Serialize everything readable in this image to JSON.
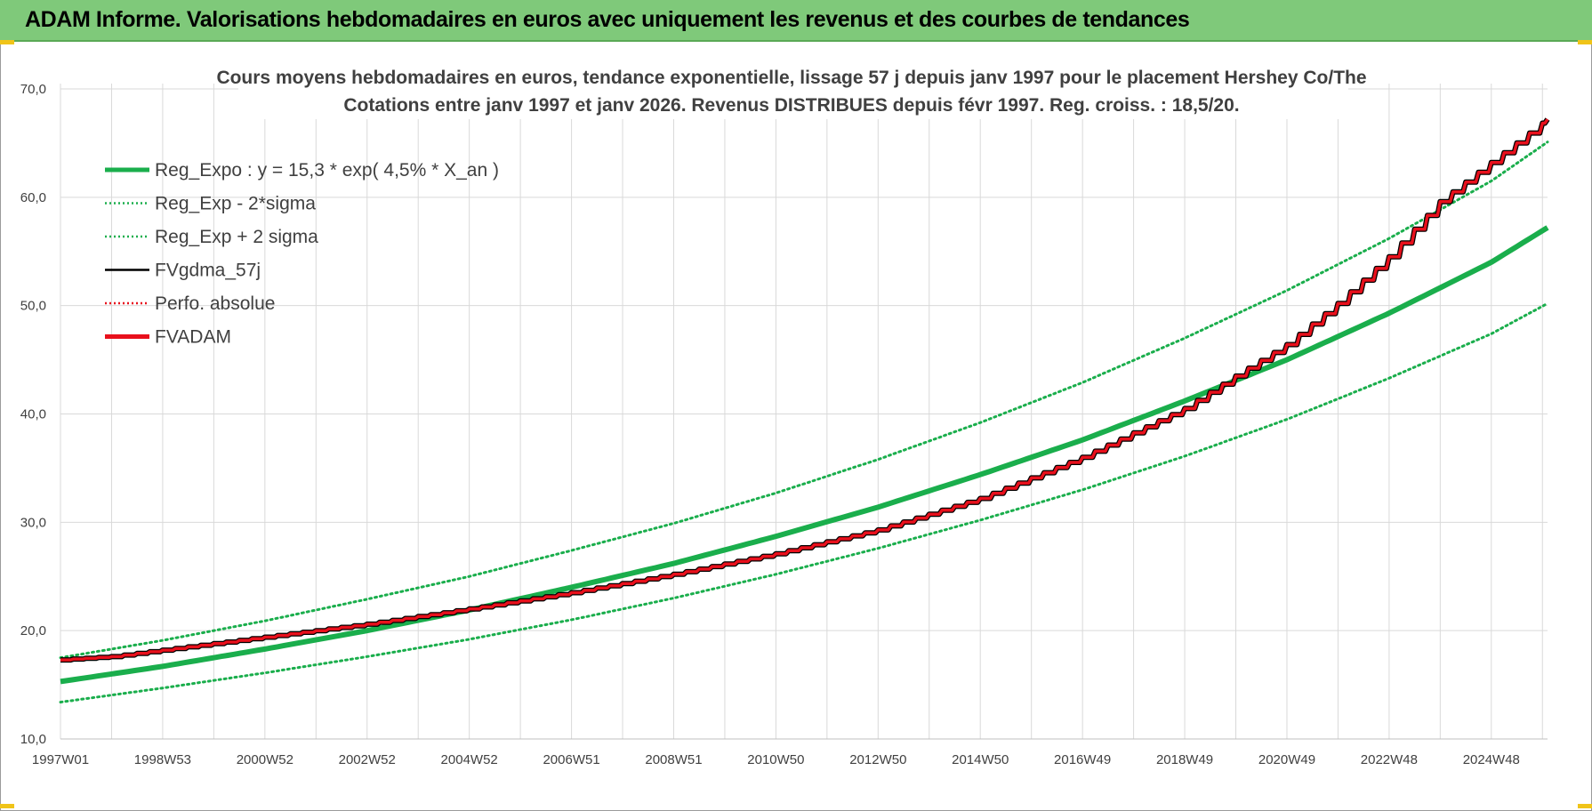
{
  "header": {
    "title": "ADAM Informe. Valorisations hebdomadaires en euros avec uniquement les revenus et des courbes de tendances"
  },
  "colors": {
    "header_bg": "#7fc97a",
    "green": "#1aae4c",
    "red": "#e8101c",
    "black": "#000000",
    "grid": "#d9d9d9"
  },
  "chart_data": {
    "type": "line",
    "title_line1": "Cours moyens hebdomadaires en euros, tendance exponentielle, lissage 57 j depuis janv 1997 pour le placement Hershey Co/The",
    "title_line2": "Cotations entre janv 1997 et janv 2026. Revenus DISTRIBUES depuis févr 1997. Reg. croiss. : 18,5/20.",
    "xlabel": "",
    "ylabel": "",
    "x_range": [
      1997.0,
      2026.1
    ],
    "ylim": [
      10,
      70
    ],
    "y_ticks": [
      "10,0",
      "20,0",
      "30,0",
      "40,0",
      "50,0",
      "60,0",
      "70,0"
    ],
    "x_ticks": [
      {
        "label": "1997W01",
        "x": 1997.0
      },
      {
        "label": "1998W53",
        "x": 1999.0
      },
      {
        "label": "2000W52",
        "x": 2001.0
      },
      {
        "label": "2002W52",
        "x": 2003.0
      },
      {
        "label": "2004W52",
        "x": 2005.0
      },
      {
        "label": "2006W51",
        "x": 2007.0
      },
      {
        "label": "2008W51",
        "x": 2009.0
      },
      {
        "label": "2010W50",
        "x": 2011.0
      },
      {
        "label": "2012W50",
        "x": 2013.0
      },
      {
        "label": "2014W50",
        "x": 2015.0
      },
      {
        "label": "2016W49",
        "x": 2017.0
      },
      {
        "label": "2018W49",
        "x": 2019.0
      },
      {
        "label": "2020W49",
        "x": 2021.0
      },
      {
        "label": "2022W48",
        "x": 2023.0
      },
      {
        "label": "2024W48",
        "x": 2025.0
      }
    ],
    "legend": [
      {
        "name": "Reg_Expo : y = 15,3 * exp( 4,5% *  X_an )",
        "style": "solid-thick",
        "color": "#1aae4c"
      },
      {
        "name": "Reg_Exp - 2*sigma",
        "style": "dotted",
        "color": "#1aae4c"
      },
      {
        "name": "Reg_Exp + 2 sigma",
        "style": "dotted",
        "color": "#1aae4c"
      },
      {
        "name": "FVgdma_57j",
        "style": "solid",
        "color": "#000000"
      },
      {
        "name": "Perfo. absolue",
        "style": "dotted",
        "color": "#e8101c"
      },
      {
        "name": "FVADAM",
        "style": "solid-thick",
        "color": "#e8101c"
      }
    ],
    "series": [
      {
        "name": "Reg_Expo",
        "x": [
          1997,
          1999,
          2001,
          2003,
          2005,
          2007,
          2009,
          2011,
          2013,
          2015,
          2017,
          2019,
          2021,
          2023,
          2025,
          2026.1
        ],
        "values": [
          15.3,
          16.7,
          18.3,
          20.0,
          21.9,
          24.0,
          26.2,
          28.7,
          31.4,
          34.4,
          37.6,
          41.2,
          45.0,
          49.3,
          54.0,
          57.2
        ]
      },
      {
        "name": "Reg_Exp - 2*sigma",
        "x": [
          1997,
          1999,
          2001,
          2003,
          2005,
          2007,
          2009,
          2011,
          2013,
          2015,
          2017,
          2019,
          2021,
          2023,
          2025,
          2026.1
        ],
        "values": [
          13.4,
          14.7,
          16.1,
          17.6,
          19.2,
          21.0,
          23.0,
          25.2,
          27.6,
          30.2,
          33.0,
          36.1,
          39.5,
          43.3,
          47.4,
          50.2
        ]
      },
      {
        "name": "Reg_Exp + 2 sigma",
        "x": [
          1997,
          1999,
          2001,
          2003,
          2005,
          2007,
          2009,
          2011,
          2013,
          2015,
          2017,
          2019,
          2021,
          2023,
          2025,
          2026.1
        ],
        "values": [
          17.5,
          19.1,
          20.9,
          22.9,
          25.0,
          27.4,
          29.9,
          32.7,
          35.8,
          39.2,
          42.9,
          47.0,
          51.4,
          56.2,
          61.5,
          65.1
        ]
      },
      {
        "name": "FVADAM",
        "x": [
          1997,
          1998,
          1999,
          2001,
          2003,
          2005,
          2007,
          2009,
          2011,
          2013,
          2015,
          2017,
          2019,
          2020,
          2021,
          2022,
          2023,
          2024,
          2025,
          2026.1
        ],
        "values": [
          17.3,
          17.6,
          18.2,
          19.4,
          20.6,
          22.0,
          23.5,
          25.2,
          27.1,
          29.3,
          32.2,
          36.0,
          40.5,
          43.5,
          46.4,
          50.2,
          54.5,
          59.6,
          63.2,
          67.2
        ]
      },
      {
        "name": "FVgdma_57j",
        "x": [
          1997,
          1998,
          1999,
          2001,
          2003,
          2005,
          2007,
          2009,
          2011,
          2013,
          2015,
          2017,
          2019,
          2020,
          2021,
          2022,
          2023,
          2024,
          2025,
          2026.1
        ],
        "values": [
          17.3,
          17.6,
          18.2,
          19.4,
          20.6,
          22.0,
          23.5,
          25.2,
          27.1,
          29.3,
          32.2,
          36.0,
          40.5,
          43.5,
          46.4,
          50.2,
          54.5,
          59.6,
          63.2,
          67.2
        ]
      }
    ]
  }
}
